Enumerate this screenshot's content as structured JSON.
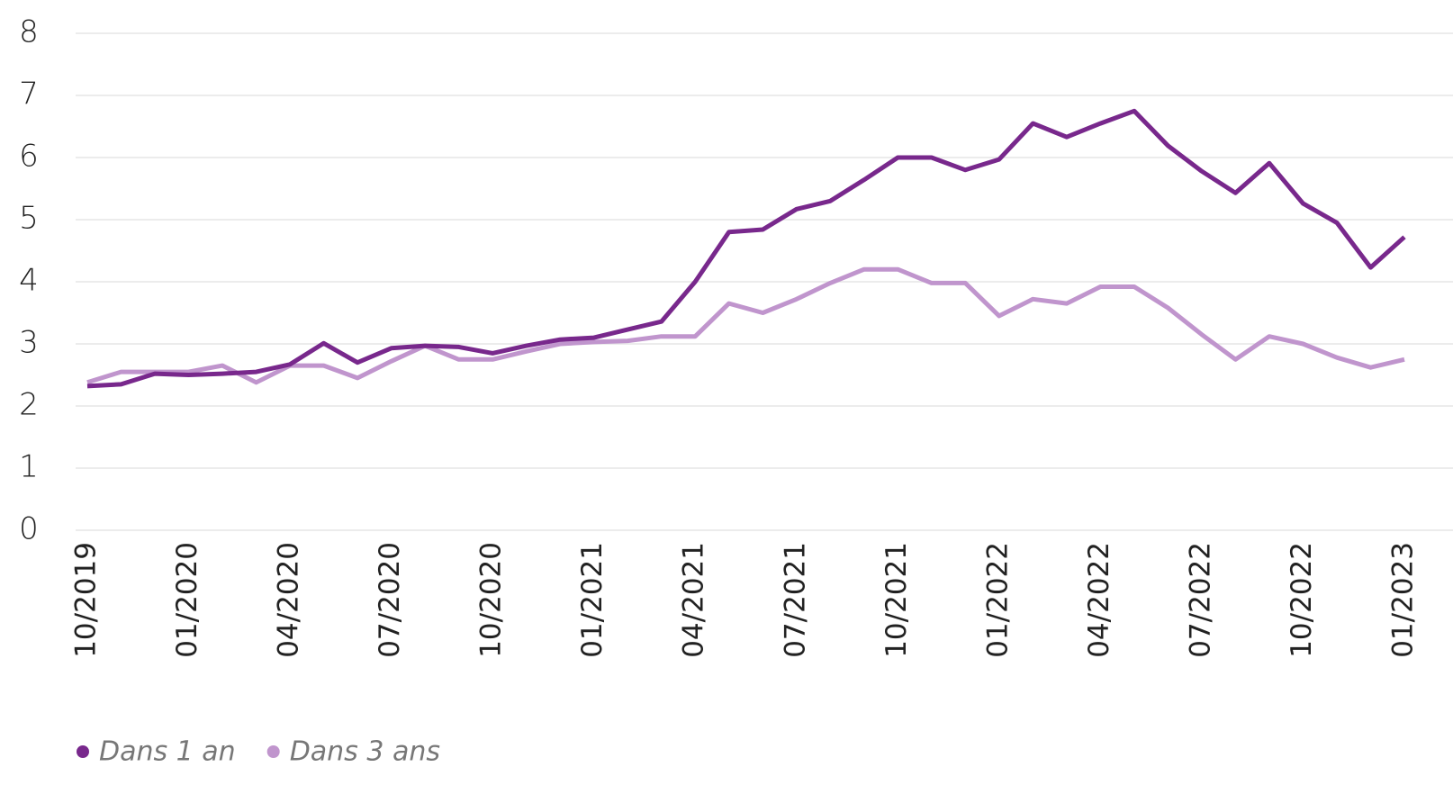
{
  "chart_data": {
    "type": "line",
    "categories": [
      "10/2019",
      null,
      null,
      "01/2020",
      null,
      null,
      "04/2020",
      null,
      null,
      "07/2020",
      null,
      null,
      "10/2020",
      null,
      null,
      "01/2021",
      null,
      null,
      "04/2021",
      null,
      null,
      "07/2021",
      null,
      null,
      "10/2021",
      null,
      null,
      "01/2022",
      null,
      null,
      "04/2022",
      null,
      null,
      "07/2022",
      null,
      null,
      "10/2022",
      null,
      null,
      "01/2023"
    ],
    "series": [
      {
        "name": "Dans 1 an",
        "color": "#78288c",
        "values": [
          2.32,
          2.35,
          2.52,
          2.5,
          2.52,
          2.55,
          2.67,
          3.01,
          2.7,
          2.93,
          2.97,
          2.95,
          2.85,
          2.97,
          3.07,
          3.1,
          3.23,
          3.36,
          4.0,
          4.8,
          4.84,
          5.17,
          5.3,
          5.64,
          6.0,
          6.0,
          5.8,
          5.97,
          6.55,
          6.33,
          6.55,
          6.75,
          6.19,
          5.78,
          5.43,
          5.91,
          5.26,
          4.95,
          4.23,
          4.72
        ]
      },
      {
        "name": "Dans 3 ans",
        "color": "#c095cd",
        "values": [
          2.38,
          2.55,
          2.55,
          2.55,
          2.65,
          2.38,
          2.65,
          2.65,
          2.45,
          2.72,
          2.97,
          2.75,
          2.75,
          2.88,
          3.0,
          3.03,
          3.05,
          3.12,
          3.12,
          3.65,
          3.5,
          3.72,
          3.98,
          4.2,
          4.2,
          3.98,
          3.98,
          3.45,
          3.72,
          3.65,
          3.92,
          3.92,
          3.58,
          3.15,
          2.75,
          3.12,
          3.0,
          2.78,
          2.62,
          2.75
        ]
      }
    ],
    "ylim": [
      0,
      8
    ],
    "yticks": [
      0,
      1,
      2,
      3,
      4,
      5,
      6,
      7,
      8
    ],
    "grid": true,
    "legend": "bottom-left"
  }
}
